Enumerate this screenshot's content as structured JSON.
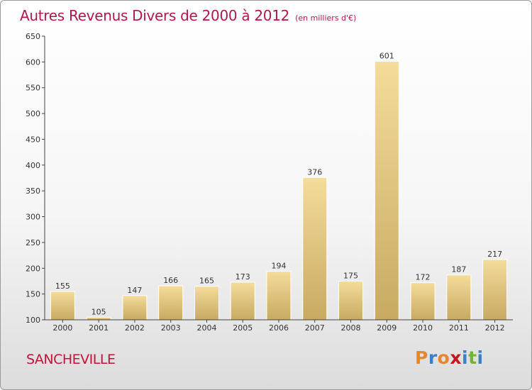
{
  "title": "Autres Revenus Divers de 2000 à 2012",
  "subtitle": "(en milliers d'€)",
  "location": "SANCHEVILLE",
  "brand": "Proxiti",
  "colors": {
    "title": "#b0184d",
    "bar_top": "#f4dc9a",
    "bar_bottom": "#c8aa62",
    "axis": "#444444",
    "logo": [
      "#e8862a",
      "#3b7fc4",
      "#e8862a",
      "#c8141e",
      "#3b7fc4",
      "#74b33a",
      "#3b7fc4"
    ]
  },
  "chart_data": {
    "type": "bar",
    "title": "Autres Revenus Divers de 2000 à 2012",
    "subtitle": "(en milliers d'€)",
    "categories": [
      "2000",
      "2001",
      "2002",
      "2003",
      "2004",
      "2005",
      "2006",
      "2007",
      "2008",
      "2009",
      "2010",
      "2011",
      "2012"
    ],
    "values": [
      155,
      105,
      147,
      166,
      165,
      173,
      194,
      376,
      175,
      601,
      172,
      187,
      217
    ],
    "ylim": [
      100,
      650
    ],
    "yticks": [
      100,
      150,
      200,
      250,
      300,
      350,
      400,
      450,
      500,
      550,
      600,
      650
    ],
    "grid": false,
    "legend": "none"
  }
}
